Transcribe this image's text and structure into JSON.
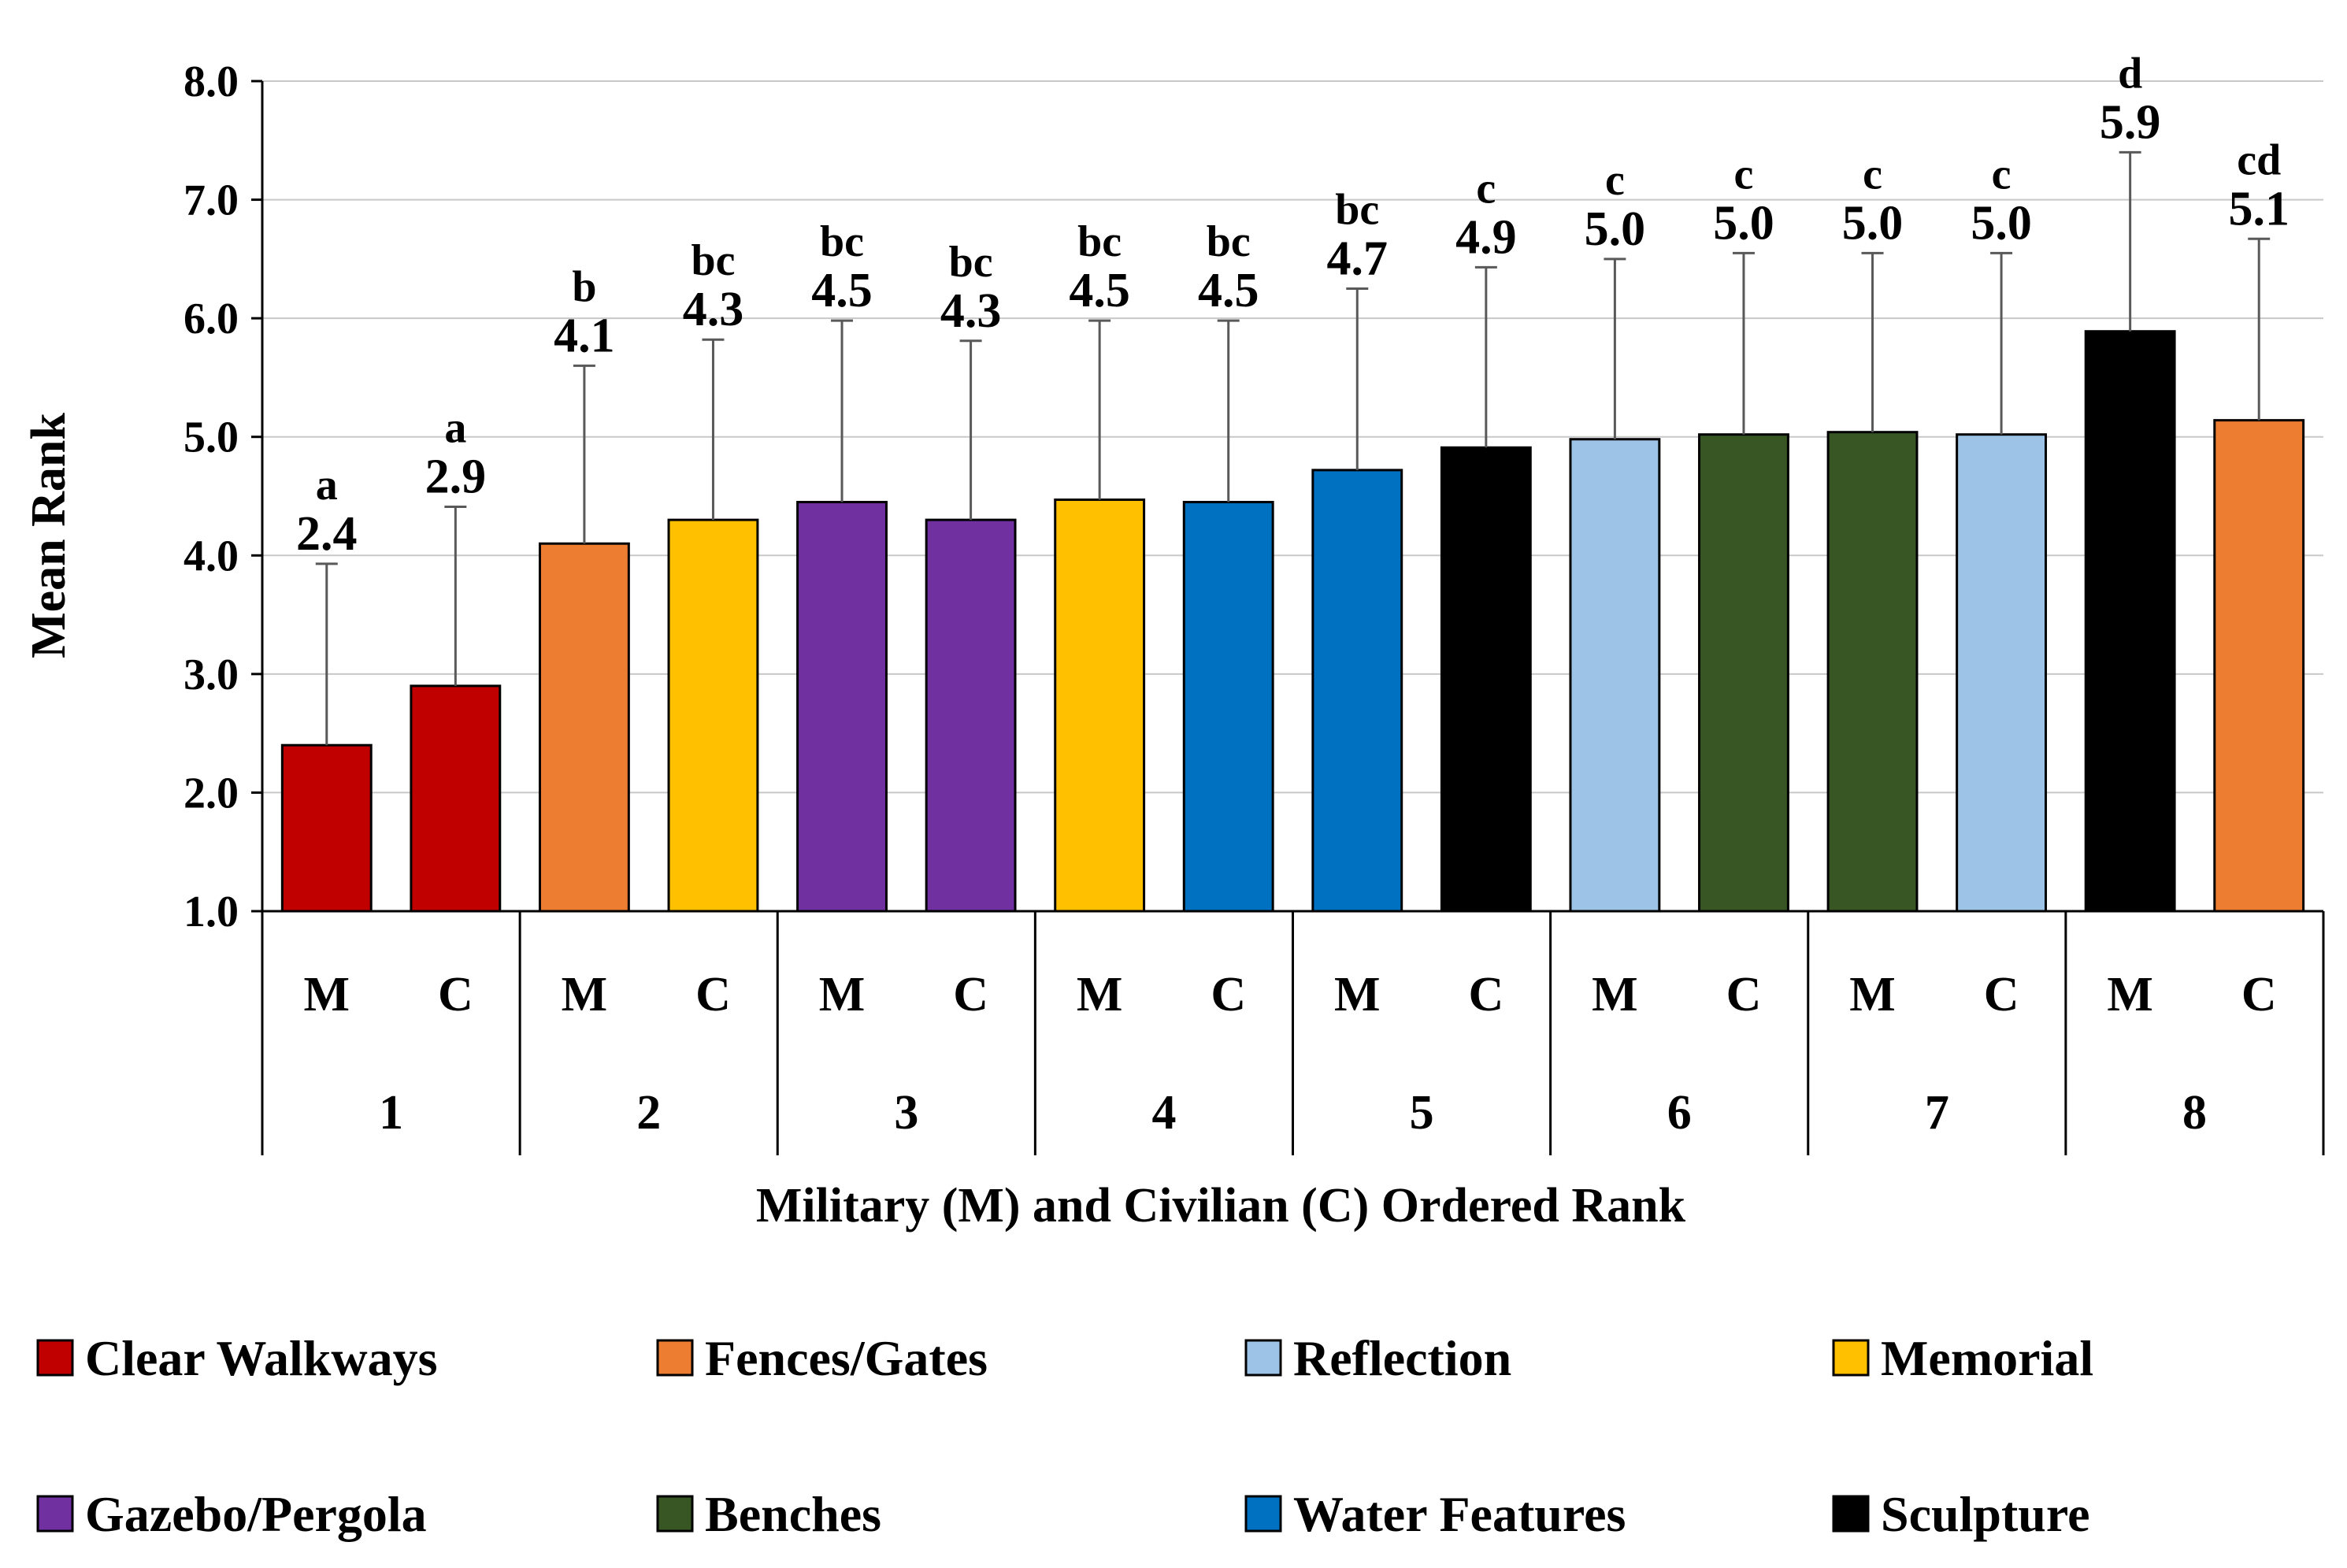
{
  "chart_data": {
    "type": "bar",
    "xlabel": "Military (M) and Civilian (C) Ordered Rank",
    "ylabel": "Mean Rank",
    "ylim": [
      1.0,
      8.0
    ],
    "yticks": [
      "1.0",
      "2.0",
      "3.0",
      "4.0",
      "5.0",
      "6.0",
      "7.0",
      "8.0"
    ],
    "grid": true,
    "groups": [
      "1",
      "2",
      "3",
      "4",
      "5",
      "6",
      "7",
      "8"
    ],
    "bars": [
      {
        "group": "1",
        "sub": "M",
        "feature": "Clear Walkways",
        "value": 2.4,
        "label": "2.4",
        "sig": "a",
        "err": 1.53
      },
      {
        "group": "1",
        "sub": "C",
        "feature": "Clear Walkways",
        "value": 2.9,
        "label": "2.9",
        "sig": "a",
        "err": 1.51
      },
      {
        "group": "2",
        "sub": "M",
        "feature": "Fences/Gates",
        "value": 4.1,
        "label": "4.1",
        "sig": "b",
        "err": 1.5
      },
      {
        "group": "2",
        "sub": "C",
        "feature": "Memorial",
        "value": 4.3,
        "label": "4.3",
        "sig": "bc",
        "err": 1.52
      },
      {
        "group": "3",
        "sub": "M",
        "feature": "Gazebo/Pergola",
        "value": 4.45,
        "label": "4.5",
        "sig": "bc",
        "err": 1.53
      },
      {
        "group": "3",
        "sub": "C",
        "feature": "Gazebo/Pergola",
        "value": 4.3,
        "label": "4.3",
        "sig": "bc",
        "err": 1.51
      },
      {
        "group": "4",
        "sub": "M",
        "feature": "Memorial",
        "value": 4.47,
        "label": "4.5",
        "sig": "bc",
        "err": 1.51
      },
      {
        "group": "4",
        "sub": "C",
        "feature": "Water Features",
        "value": 4.45,
        "label": "4.5",
        "sig": "bc",
        "err": 1.53
      },
      {
        "group": "5",
        "sub": "M",
        "feature": "Water Features",
        "value": 4.72,
        "label": "4.7",
        "sig": "bc",
        "err": 1.53
      },
      {
        "group": "5",
        "sub": "C",
        "feature": "Sculpture",
        "value": 4.91,
        "label": "4.9",
        "sig": "c",
        "err": 1.52
      },
      {
        "group": "6",
        "sub": "M",
        "feature": "Reflection",
        "value": 4.98,
        "label": "5.0",
        "sig": "c",
        "err": 1.52
      },
      {
        "group": "6",
        "sub": "C",
        "feature": "Benches",
        "value": 5.02,
        "label": "5.0",
        "sig": "c",
        "err": 1.53
      },
      {
        "group": "7",
        "sub": "M",
        "feature": "Benches",
        "value": 5.04,
        "label": "5.0",
        "sig": "c",
        "err": 1.51
      },
      {
        "group": "7",
        "sub": "C",
        "feature": "Reflection",
        "value": 5.02,
        "label": "5.0",
        "sig": "c",
        "err": 1.53
      },
      {
        "group": "8",
        "sub": "M",
        "feature": "Sculpture",
        "value": 5.89,
        "label": "5.9",
        "sig": "d",
        "err": 1.51
      },
      {
        "group": "8",
        "sub": "C",
        "feature": "Fences/Gates",
        "value": 5.14,
        "label": "5.1",
        "sig": "cd",
        "err": 1.53
      }
    ],
    "legend": [
      {
        "name": "Clear Walkways",
        "color": "#c00000"
      },
      {
        "name": "Fences/Gates",
        "color": "#ed7d31"
      },
      {
        "name": "Reflection",
        "color": "#9dc3e6"
      },
      {
        "name": "Memorial",
        "color": "#ffc000"
      },
      {
        "name": "Gazebo/Pergola",
        "color": "#7030a0"
      },
      {
        "name": "Benches",
        "color": "#375623"
      },
      {
        "name": "Water Features",
        "color": "#0070c0"
      },
      {
        "name": "Sculpture",
        "color": "#000000"
      }
    ]
  }
}
